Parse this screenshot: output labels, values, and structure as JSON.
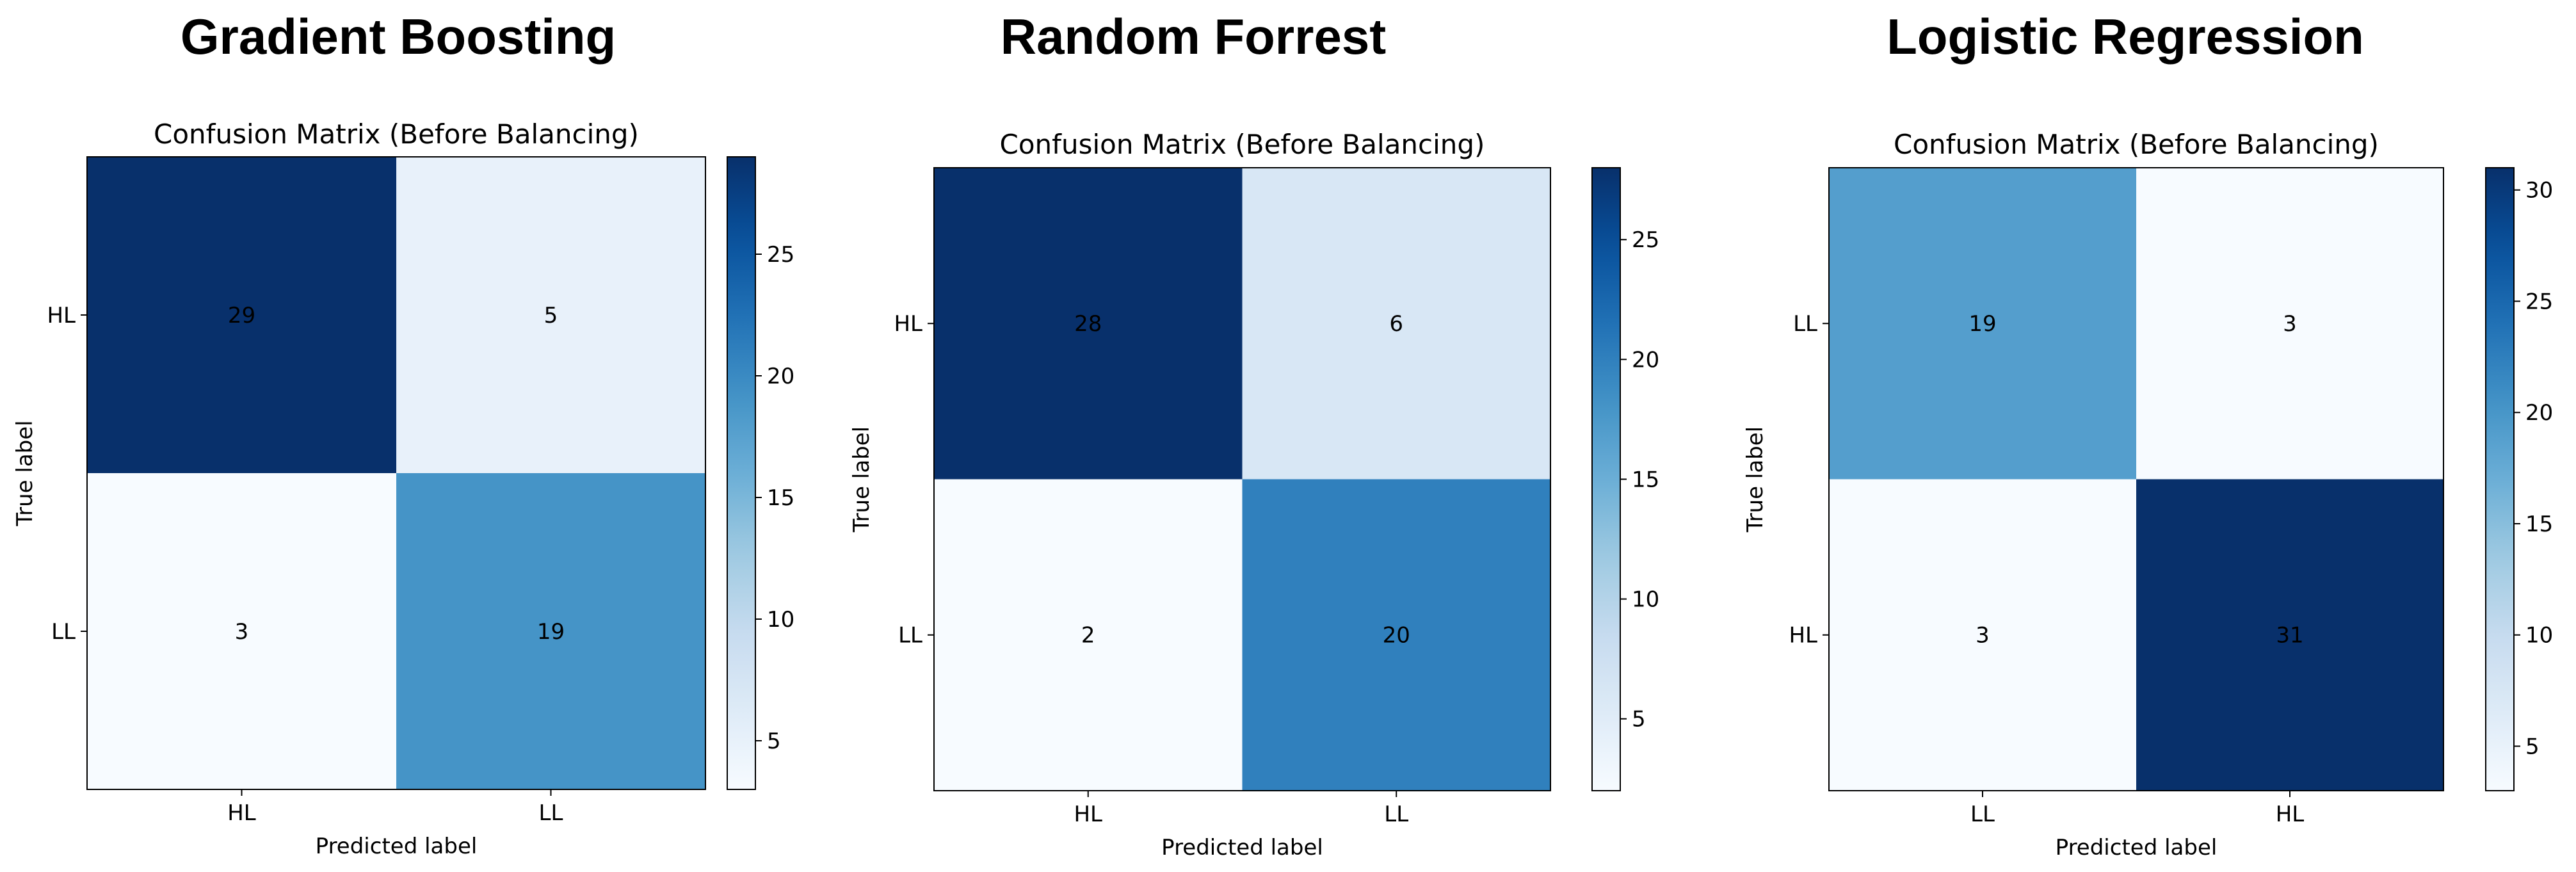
{
  "chart_data": [
    {
      "type": "heatmap",
      "panel_title": "Gradient Boosting",
      "title": "Confusion Matrix (Before Balancing)",
      "xlabel": "Predicted label",
      "ylabel": "True label",
      "x_categories": [
        "HL",
        "LL"
      ],
      "y_categories": [
        "HL",
        "LL"
      ],
      "values": [
        [
          29,
          5
        ],
        [
          3,
          19
        ]
      ],
      "colormap": "Blues",
      "vmin": 3,
      "vmax": 29,
      "colorbar_ticks": [
        5,
        10,
        15,
        20,
        25
      ]
    },
    {
      "type": "heatmap",
      "panel_title": "Random Forrest",
      "title": "Confusion Matrix (Before Balancing)",
      "xlabel": "Predicted label",
      "ylabel": "True label",
      "x_categories": [
        "HL",
        "LL"
      ],
      "y_categories": [
        "HL",
        "LL"
      ],
      "values": [
        [
          28,
          6
        ],
        [
          2,
          20
        ]
      ],
      "colormap": "Blues",
      "vmin": 2,
      "vmax": 28,
      "colorbar_ticks": [
        5,
        10,
        15,
        20,
        25
      ]
    },
    {
      "type": "heatmap",
      "panel_title": "Logistic Regression",
      "title": "Confusion Matrix (Before Balancing)",
      "xlabel": "Predicted label",
      "ylabel": "True label",
      "x_categories": [
        "LL",
        "HL"
      ],
      "y_categories": [
        "LL",
        "HL"
      ],
      "values": [
        [
          19,
          3
        ],
        [
          3,
          31
        ]
      ],
      "colormap": "Blues",
      "vmin": 3,
      "vmax": 31,
      "colorbar_ticks": [
        5,
        10,
        15,
        20,
        25,
        30
      ]
    }
  ]
}
